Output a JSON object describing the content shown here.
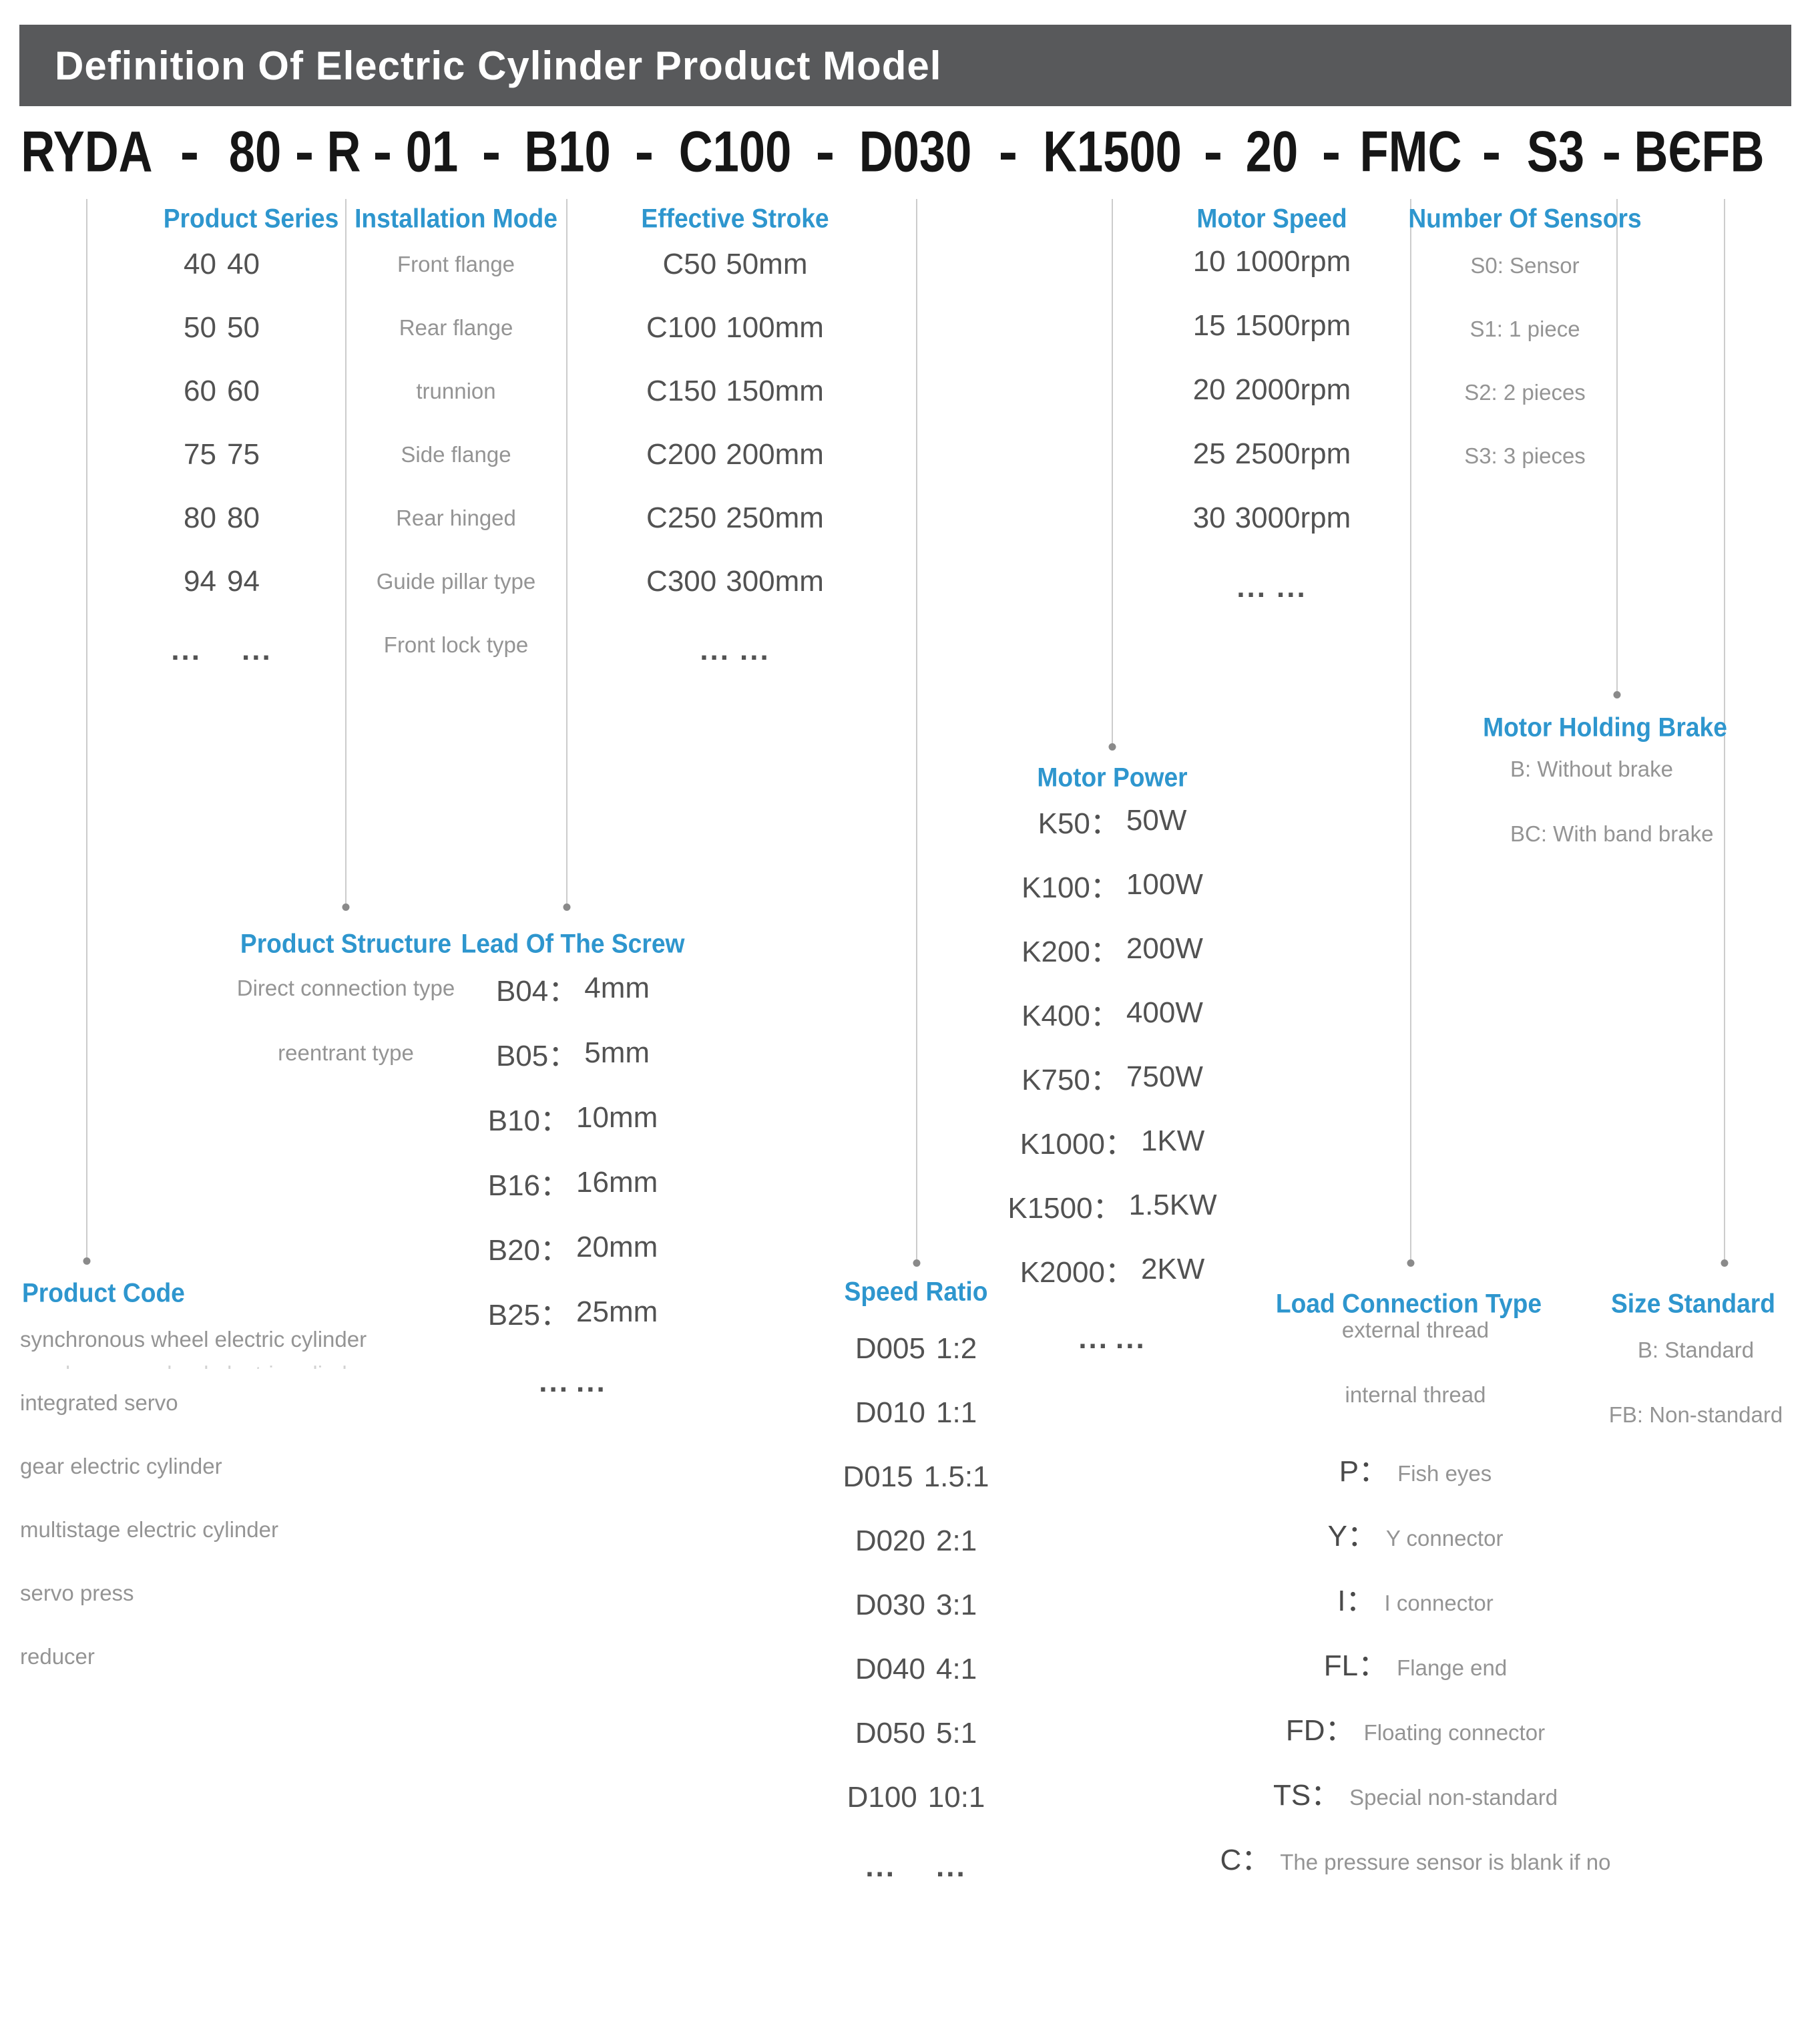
{
  "banner": {
    "title": "Definition Of Electric Cylinder Product Model",
    "bg": "#58595B"
  },
  "model": {
    "segments": [
      "RYDA",
      "80",
      "R",
      "01",
      "B10",
      "C100",
      "D030",
      "K1500",
      "20",
      "FMC",
      "S3",
      "BЄFB"
    ],
    "separator": "-"
  },
  "colors": {
    "accent_blue": "#2E96CE",
    "dark_text": "#525252",
    "light_text": "#949494",
    "line": "#CCCCCC",
    "dot": "#8A8A8A",
    "banner_bg": "#58595B"
  },
  "sections": {
    "product_series": {
      "header": "Product Series",
      "items": [
        {
          "c": "40",
          "v": "40"
        },
        {
          "c": "50",
          "v": "50"
        },
        {
          "c": "60",
          "v": "60"
        },
        {
          "c": "75",
          "v": "75"
        },
        {
          "c": "80",
          "v": "80"
        },
        {
          "c": "94",
          "v": "94"
        },
        {
          "c": "...",
          "v": "..."
        }
      ]
    },
    "installation_mode": {
      "header": "Installation Mode",
      "items": [
        "Front flange",
        "Rear flange",
        "trunnion",
        "Side flange",
        "Rear hinged",
        "Guide pillar type",
        "Front lock type"
      ]
    },
    "effective_stroke": {
      "header": "Effective Stroke",
      "items": [
        {
          "c": "C50",
          "v": "50mm"
        },
        {
          "c": "C100",
          "v": "100mm"
        },
        {
          "c": "C150",
          "v": "150mm"
        },
        {
          "c": "C200",
          "v": "200mm"
        },
        {
          "c": "C250",
          "v": "250mm"
        },
        {
          "c": "C300",
          "v": "300mm"
        },
        {
          "c": "...",
          "v": "..."
        }
      ]
    },
    "motor_speed": {
      "header": "Motor Speed",
      "items": [
        {
          "c": "10",
          "v": "1000rpm"
        },
        {
          "c": "15",
          "v": "1500rpm"
        },
        {
          "c": "20",
          "v": "2000rpm"
        },
        {
          "c": "25",
          "v": "2500rpm"
        },
        {
          "c": "30",
          "v": "3000rpm"
        },
        {
          "c": "...",
          "v": "..."
        }
      ]
    },
    "number_of_sensors": {
      "header": "Number Of Sensors",
      "items": [
        "S0: Sensor",
        "S1: 1 piece",
        "S2: 2 pieces",
        "S3: 3 pieces"
      ]
    },
    "motor_holding_brake": {
      "header": "Motor Holding Brake",
      "items": [
        "B: Without brake",
        "BC: With band brake"
      ]
    },
    "motor_power": {
      "header": "Motor Power",
      "items": [
        {
          "c": "K50：",
          "v": "50W"
        },
        {
          "c": "K100：",
          "v": "100W"
        },
        {
          "c": "K200：",
          "v": "200W"
        },
        {
          "c": "K400：",
          "v": "400W"
        },
        {
          "c": "K750：",
          "v": "750W"
        },
        {
          "c": "K1000：",
          "v": "1KW"
        },
        {
          "c": "K1500：",
          "v": "1.5KW"
        },
        {
          "c": "K2000：",
          "v": "2KW"
        },
        {
          "c": "...",
          "v": "..."
        }
      ]
    },
    "product_structure": {
      "header": "Product Structure",
      "items": [
        "Direct connection type",
        "reentrant type"
      ]
    },
    "lead_of_screw": {
      "header": "Lead Of The Screw",
      "items": [
        {
          "c": "B04：",
          "v": "4mm"
        },
        {
          "c": "B05：",
          "v": "5mm"
        },
        {
          "c": "B10：",
          "v": "10mm"
        },
        {
          "c": "B16：",
          "v": "16mm"
        },
        {
          "c": "B20：",
          "v": "20mm"
        },
        {
          "c": "B25：",
          "v": "25mm"
        },
        {
          "c": "...",
          "v": "..."
        }
      ]
    },
    "product_code": {
      "header": "Product Code",
      "items": [
        "synchronous wheel electric cylinder",
        "integrated servo",
        "gear electric cylinder",
        "multistage electric cylinder",
        "servo press",
        "reducer"
      ]
    },
    "speed_ratio": {
      "header": "Speed Ratio",
      "items": [
        {
          "c": "D005",
          "v": "1:2"
        },
        {
          "c": "D010",
          "v": "1:1"
        },
        {
          "c": "D015",
          "v": "1.5:1"
        },
        {
          "c": "D020",
          "v": "2:1"
        },
        {
          "c": "D030",
          "v": "3:1"
        },
        {
          "c": "D040",
          "v": "4:1"
        },
        {
          "c": "D050",
          "v": "5:1"
        },
        {
          "c": "D100",
          "v": "10:1"
        },
        {
          "c": "...",
          "v": "..."
        }
      ]
    },
    "load_connection": {
      "header": "Load Connection Type",
      "items": [
        {
          "v": "external thread"
        },
        {
          "v": "internal thread"
        },
        {
          "c": "P：",
          "v": "Fish eyes"
        },
        {
          "c": "Y：",
          "v": "Y connector"
        },
        {
          "c": "I：",
          "v": "I connector"
        },
        {
          "c": "FL：",
          "v": "Flange end"
        },
        {
          "c": "FD：",
          "v": "Floating connector"
        },
        {
          "c": "TS：",
          "v": "Special non-standard"
        },
        {
          "c": "C：",
          "v": "The pressure sensor is blank if no"
        }
      ]
    },
    "size_standard": {
      "header": "Size Standard",
      "items": [
        "B: Standard",
        "FB: Non-standard"
      ]
    }
  }
}
